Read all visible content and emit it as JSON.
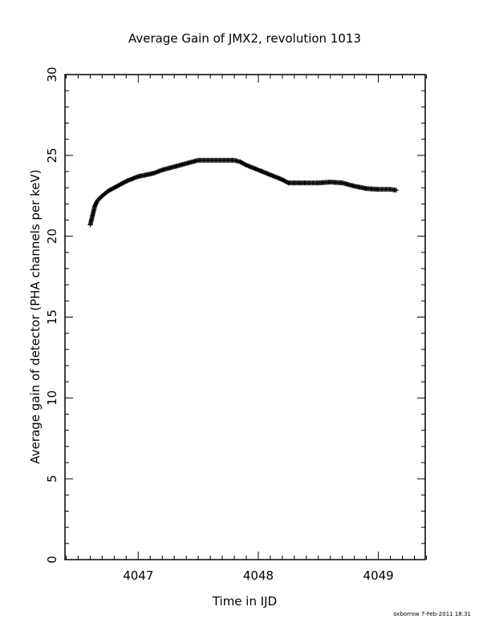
{
  "chart_data": {
    "type": "scatter",
    "title": "Average Gain of JMX2, revolution 1013",
    "xlabel": "Time in IJD",
    "ylabel": "Average gain of detector (PHA channels per keV)",
    "xlim": [
      4046.39,
      4049.39
    ],
    "ylim": [
      0,
      30
    ],
    "x_ticks": [
      4047,
      4048,
      4049
    ],
    "y_ticks": [
      0,
      5,
      10,
      15,
      20,
      25,
      30
    ],
    "marker": "plus",
    "grid": false,
    "color": "#000000",
    "series": [
      {
        "points": [
          [
            4046.6,
            20.7
          ],
          [
            4046.61,
            21.0
          ],
          [
            4046.62,
            21.3
          ],
          [
            4046.63,
            21.6
          ],
          [
            4046.64,
            21.9
          ],
          [
            4046.66,
            22.2
          ],
          [
            4046.7,
            22.5
          ],
          [
            4046.75,
            22.8
          ],
          [
            4046.8,
            23.0
          ],
          [
            4046.9,
            23.4
          ],
          [
            4047.0,
            23.7
          ],
          [
            4047.07,
            23.8
          ],
          [
            4047.13,
            23.9
          ],
          [
            4047.2,
            24.1
          ],
          [
            4047.3,
            24.3
          ],
          [
            4047.4,
            24.5
          ],
          [
            4047.5,
            24.7
          ],
          [
            4047.6,
            24.7
          ],
          [
            4047.7,
            24.7
          ],
          [
            4047.8,
            24.7
          ],
          [
            4047.85,
            24.6
          ],
          [
            4047.9,
            24.4
          ],
          [
            4048.0,
            24.1
          ],
          [
            4048.1,
            23.8
          ],
          [
            4048.2,
            23.5
          ],
          [
            4048.25,
            23.3
          ],
          [
            4048.4,
            23.3
          ],
          [
            4048.5,
            23.3
          ],
          [
            4048.6,
            23.35
          ],
          [
            4048.7,
            23.3
          ],
          [
            4048.8,
            23.1
          ],
          [
            4048.9,
            22.95
          ],
          [
            4049.0,
            22.9
          ],
          [
            4049.1,
            22.9
          ],
          [
            4049.15,
            22.85
          ]
        ]
      }
    ]
  },
  "footer": {
    "credit": "oxborrow  7-Feb-2011 18:31"
  }
}
